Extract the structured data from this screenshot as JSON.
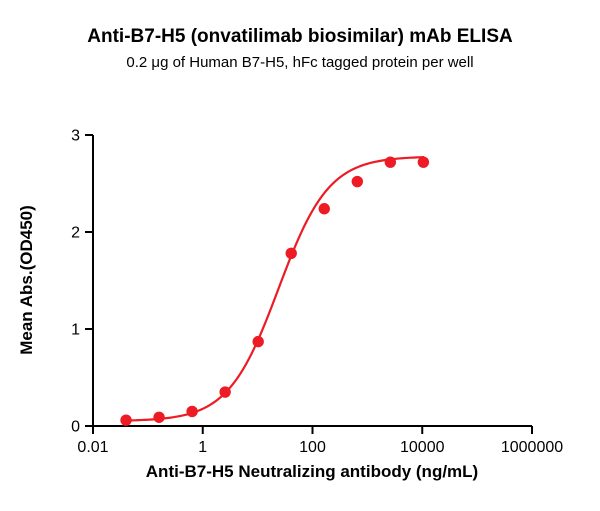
{
  "page": {
    "background": "#ffffff"
  },
  "header": {
    "title": "Anti-B7-H5 (onvatilimab biosimilar) mAb ELISA",
    "subtitle": "0.2 μg of Human B7-H5, hFc tagged protein per well"
  },
  "colors": {
    "series_red": "#ED1C24",
    "axis_black": "#000000",
    "background": "#ffffff"
  },
  "chart_data": {
    "type": "scatter",
    "title": "Anti-B7-H5 (onvatilimab biosimilar) mAb ELISA",
    "subtitle": "0.2 μg of Human B7-H5, hFc tagged protein per well",
    "xlabel": "Anti-B7-H5 Neutralizing antibody (ng/mL)",
    "ylabel": "Mean Abs.(OD450)",
    "x_scale": "log10",
    "xlim": [
      0.01,
      1000000
    ],
    "ylim": [
      0,
      3
    ],
    "x_ticks": [
      0.01,
      1,
      100,
      10000,
      1000000
    ],
    "x_tick_labels": [
      "0.01",
      "1",
      "100",
      "10000",
      "1000000"
    ],
    "y_ticks": [
      0,
      1,
      2,
      3
    ],
    "y_tick_labels": [
      "0",
      "1",
      "2",
      "3"
    ],
    "grid": false,
    "legend": "none",
    "series": [
      {
        "marker": "circle",
        "color": "#ED1C24",
        "x": [
          0.04,
          0.16,
          0.64,
          2.56,
          10.24,
          40.96,
          163.84,
          655.36,
          2621.44,
          10485.76
        ],
        "y": [
          0.06,
          0.09,
          0.15,
          0.35,
          0.87,
          1.78,
          2.24,
          2.52,
          2.72,
          2.72
        ]
      }
    ],
    "fit_curve": {
      "model": "4PL logistic",
      "bottom": 0.05,
      "top": 2.78,
      "ec50": 24,
      "hill": 0.95,
      "color": "#ED1C24",
      "x_range": [
        0.04,
        10485.76
      ]
    }
  }
}
